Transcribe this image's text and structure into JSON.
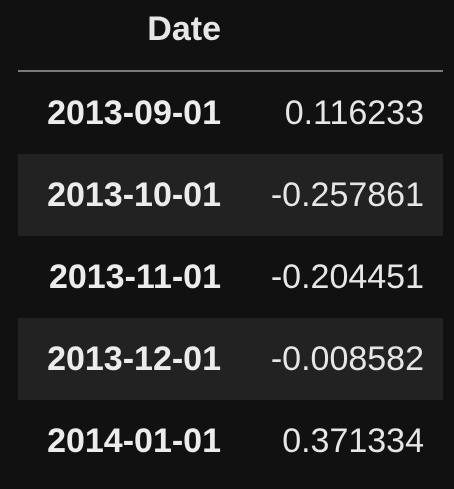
{
  "table": {
    "index_header": "Date",
    "rows": [
      {
        "date": "2013-09-01",
        "value": "0.116233"
      },
      {
        "date": "2013-10-01",
        "value": "-0.257861"
      },
      {
        "date": "2013-11-01",
        "value": "-0.204451"
      },
      {
        "date": "2013-12-01",
        "value": "-0.008582"
      },
      {
        "date": "2014-01-01",
        "value": "0.371334"
      }
    ]
  },
  "colors": {
    "background": "#111111",
    "alt_row": "#222222",
    "header_rule": "#7a7a7a",
    "text": "#e6e6e6"
  }
}
